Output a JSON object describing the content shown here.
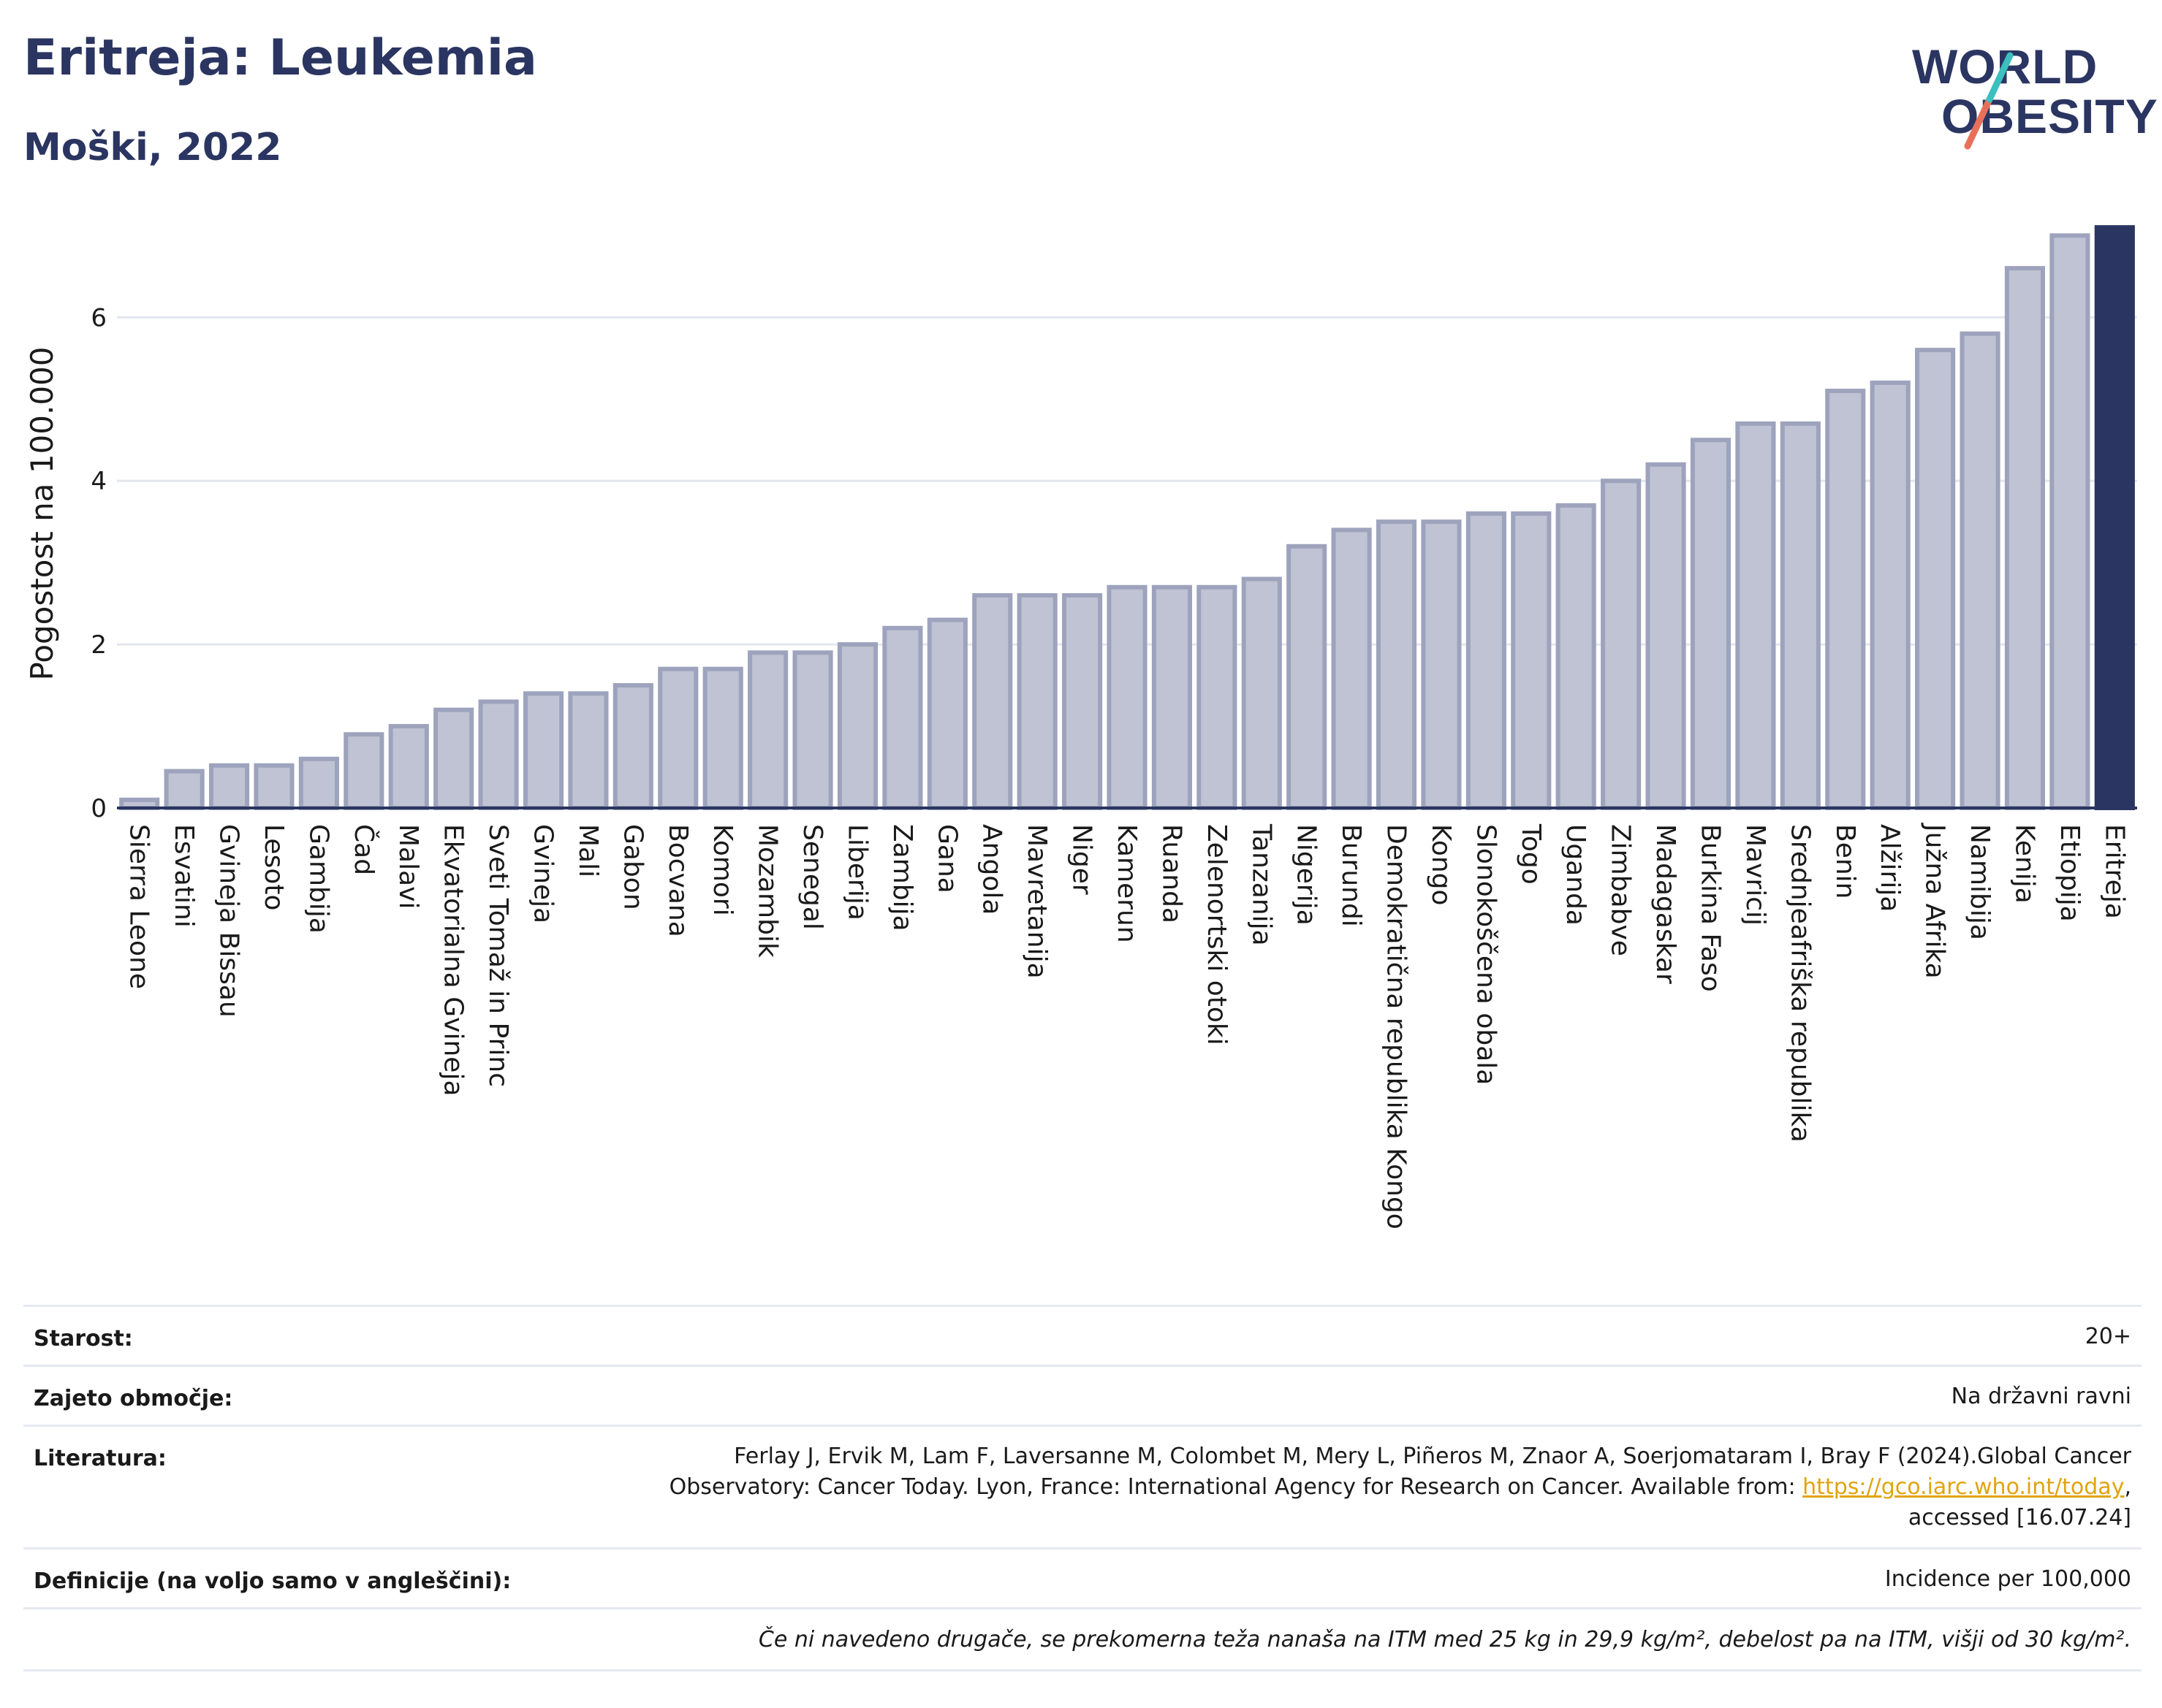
{
  "header": {
    "title": "Eritreja: Leukemia",
    "subtitle": "Moški, 2022"
  },
  "logo": {
    "line1": "WORLD",
    "line2": "OBESITY",
    "colors": {
      "navy": "#2b3561",
      "teal": "#3bbfbf",
      "coral": "#e8705a"
    }
  },
  "chart_data": {
    "type": "bar",
    "ylabel": "Pogostost na 100.000",
    "ylim": [
      0,
      7.2
    ],
    "yticks": [
      0,
      2,
      4,
      6
    ],
    "grid": true,
    "bar_color": "#bfc3d3",
    "bar_edge_color": "#9ea3bd",
    "highlight_color": "#2b3561",
    "highlight": "Eritreja",
    "categories": [
      "Sierra Leone",
      "Esvatini",
      "Gvineja Bissau",
      "Lesoto",
      "Gambija",
      "Čad",
      "Malavi",
      "Ekvatorialna Gvineja",
      "Sveti Tomaž in Princ",
      "Gvineja",
      "Mali",
      "Gabon",
      "Bocvana",
      "Komori",
      "Mozambik",
      "Senegal",
      "Liberija",
      "Zambija",
      "Gana",
      "Angola",
      "Mavretanija",
      "Niger",
      "Kamerun",
      "Ruanda",
      "Zelenortski otoki",
      "Tanzanija",
      "Nigerija",
      "Burundi",
      "Demokratična republika Kongo",
      "Kongo",
      "Slonokoščena obala",
      "Togo",
      "Uganda",
      "Zimbabve",
      "Madagaskar",
      "Burkina Faso",
      "Mavricij",
      "Srednjeafriška republika",
      "Benin",
      "Alžirija",
      "Južna Afrika",
      "Namibija",
      "Kenija",
      "Etiopija",
      "Eritreja"
    ],
    "values": [
      0.1,
      0.45,
      0.52,
      0.52,
      0.6,
      0.9,
      1.0,
      1.2,
      1.3,
      1.4,
      1.4,
      1.5,
      1.7,
      1.7,
      1.9,
      1.9,
      2.0,
      2.2,
      2.3,
      2.6,
      2.6,
      2.6,
      2.7,
      2.7,
      2.7,
      2.8,
      3.2,
      3.4,
      3.5,
      3.5,
      3.6,
      3.6,
      3.7,
      4.0,
      4.2,
      4.5,
      4.7,
      4.7,
      5.1,
      5.2,
      5.6,
      5.8,
      6.6,
      7.0,
      7.1
    ]
  },
  "info": {
    "age_label": "Starost:",
    "age_value": "20+",
    "coverage_label": "Zajeto območje:",
    "coverage_value": "Na državni ravni",
    "literature_label": "Literatura:",
    "literature_line1": "Ferlay J, Ervik M, Lam F, Laversanne M, Colombet M, Mery L, Piñeros M, Znaor A, Soerjomataram I, Bray F (2024).Global Cancer",
    "literature_line2": "Observatory: Cancer Today. Lyon, France: International Agency for Research on Cancer. Available from: ",
    "literature_link": "https://gco.iarc.who.int/today",
    "literature_line2_end": ",",
    "literature_line3": "accessed [16.07.24]",
    "definitions_label": "Definicije (na voljo samo v angleščini):",
    "definitions_value": "Incidence per 100,000",
    "footnote": "Če ni navedeno drugače, se prekomerna teža nanaša na ITM med 25 kg in 29,9 kg/m², debelost pa na ITM, višji od 30 kg/m²."
  }
}
